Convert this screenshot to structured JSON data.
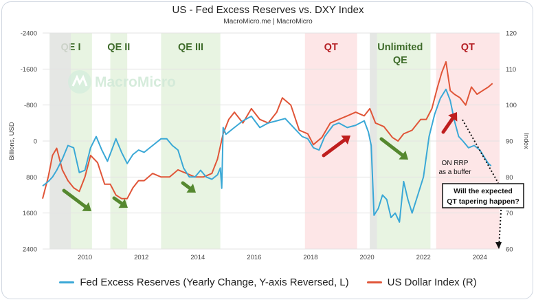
{
  "header": {
    "title": "US - Fed Excess Reserves vs. DXY Index",
    "subtitle": "MacroMicro.me | MacroMicro"
  },
  "watermark": "MacroMicro",
  "colors": {
    "reserves": "#3aa8d6",
    "dxy": "#e05538",
    "qe_band": "#e6f3df",
    "qt_band": "#fde3e4",
    "recession_band": "#e4e4e4",
    "qe_label": "#3e6b2a",
    "qt_label": "#b51f24",
    "green_arrow": "#55882f",
    "red_arrow": "#bf1e1e"
  },
  "annotation": {
    "on_rrp_line1": "ON RRP",
    "on_rrp_line2": "as a buffer",
    "box_line1": "Will the expected",
    "box_line2": "QT tapering happen?"
  },
  "legend": {
    "reserves": "Fed Excess Reserves (Yearly Change, Y-axis Reversed, L)",
    "dxy": "US Dollar Index (R)"
  },
  "chart_data": {
    "type": "line",
    "y_left_label": "Billions, USD",
    "y_right_label": "Index",
    "y_left_reversed": true,
    "y_left_range": [
      -2400,
      2400
    ],
    "y_right_range": [
      60,
      120
    ],
    "x_range": [
      2008.5,
      2024.7
    ],
    "x_ticks": [
      "2010",
      "2012",
      "2014",
      "2016",
      "2018",
      "2020",
      "2022",
      "2024"
    ],
    "y_left_ticks": [
      "-2400",
      "-1600",
      "-800",
      "0",
      "800",
      "1600",
      "2400"
    ],
    "y_right_ticks": [
      "120",
      "110",
      "100",
      "90",
      "80",
      "70",
      "60"
    ],
    "bands": [
      {
        "kind": "qe",
        "start": 2008.75,
        "end": 2010.25,
        "label": "QE I"
      },
      {
        "kind": "qe",
        "start": 2010.9,
        "end": 2011.5,
        "label": "QE II"
      },
      {
        "kind": "qe",
        "start": 2012.7,
        "end": 2014.8,
        "label": "QE III"
      },
      {
        "kind": "qt",
        "start": 2017.8,
        "end": 2019.65,
        "label": "QT"
      },
      {
        "kind": "qe",
        "start": 2020.1,
        "end": 2022.25,
        "label": "Unlimited\nQE"
      },
      {
        "kind": "qt",
        "start": 2022.45,
        "end": 2024.7,
        "label": "QT"
      },
      {
        "kind": "recession",
        "start": 2008.75,
        "end": 2009.5,
        "label": ""
      },
      {
        "kind": "recession",
        "start": 2020.1,
        "end": 2020.35,
        "label": ""
      }
    ],
    "grid": true,
    "grid_style": "horizontal",
    "series": [
      {
        "name": "Fed Excess Reserves (Yearly Change, Y-axis Reversed, L)",
        "axis": "left",
        "x": [
          2008.5,
          2008.7,
          2008.85,
          2009.0,
          2009.2,
          2009.4,
          2009.6,
          2009.8,
          2010.0,
          2010.2,
          2010.4,
          2010.6,
          2010.8,
          2010.95,
          2011.1,
          2011.3,
          2011.5,
          2011.7,
          2011.9,
          2012.1,
          2012.4,
          2012.7,
          2012.9,
          2013.1,
          2013.3,
          2013.5,
          2013.7,
          2013.9,
          2014.1,
          2014.3,
          2014.5,
          2014.7,
          2014.8,
          2014.85,
          2014.9,
          2015.0,
          2015.3,
          2015.6,
          2015.9,
          2016.2,
          2016.5,
          2016.8,
          2017.1,
          2017.4,
          2017.7,
          2017.9,
          2018.1,
          2018.3,
          2018.5,
          2018.8,
          2019.0,
          2019.3,
          2019.6,
          2019.9,
          2020.05,
          2020.15,
          2020.25,
          2020.4,
          2020.55,
          2020.7,
          2020.85,
          2021.0,
          2021.15,
          2021.3,
          2021.45,
          2021.6,
          2021.8,
          2022.0,
          2022.2,
          2022.4,
          2022.6,
          2022.8,
          2022.95,
          2023.1,
          2023.25,
          2023.4,
          2023.6,
          2023.8,
          2024.0,
          2024.15,
          2024.3,
          2024.4
        ],
        "values": [
          1000,
          900,
          800,
          650,
          400,
          100,
          150,
          700,
          650,
          150,
          -100,
          200,
          450,
          200,
          -50,
          250,
          500,
          300,
          200,
          250,
          100,
          -50,
          -50,
          100,
          200,
          600,
          800,
          800,
          650,
          800,
          850,
          750,
          600,
          1050,
          -300,
          -150,
          -300,
          -450,
          -550,
          -300,
          -400,
          -450,
          -500,
          -300,
          -100,
          -50,
          150,
          200,
          -100,
          -350,
          -400,
          -300,
          -350,
          -450,
          -200,
          100,
          1650,
          1500,
          1200,
          1300,
          1700,
          1600,
          1800,
          900,
          1300,
          1600,
          1200,
          800,
          -100,
          -600,
          -950,
          -1150,
          -900,
          -450,
          -100,
          0,
          150,
          100,
          200,
          350,
          500,
          550
        ]
      },
      {
        "name": "US Dollar Index (R)",
        "axis": "right",
        "x": [
          2008.5,
          2008.7,
          2008.85,
          2009.0,
          2009.2,
          2009.4,
          2009.6,
          2009.8,
          2010.0,
          2010.2,
          2010.45,
          2010.7,
          2010.9,
          2011.1,
          2011.3,
          2011.5,
          2011.7,
          2011.9,
          2012.1,
          2012.4,
          2012.7,
          2013.0,
          2013.3,
          2013.6,
          2013.9,
          2014.2,
          2014.5,
          2014.7,
          2014.9,
          2015.1,
          2015.3,
          2015.6,
          2015.9,
          2016.2,
          2016.5,
          2016.8,
          2017.0,
          2017.3,
          2017.6,
          2017.9,
          2018.1,
          2018.4,
          2018.7,
          2019.0,
          2019.3,
          2019.6,
          2019.9,
          2020.1,
          2020.3,
          2020.6,
          2020.9,
          2021.1,
          2021.3,
          2021.6,
          2021.9,
          2022.1,
          2022.3,
          2022.5,
          2022.65,
          2022.8,
          2022.95,
          2023.1,
          2023.3,
          2023.5,
          2023.7,
          2023.9,
          2024.1,
          2024.3,
          2024.45
        ],
        "values": [
          74,
          80,
          86,
          88,
          82,
          79,
          77,
          76,
          80,
          86,
          84,
          78,
          78,
          75,
          74,
          74,
          77,
          79,
          79,
          81,
          80,
          80,
          82,
          81,
          80,
          80,
          81,
          85,
          92,
          96,
          98,
          95,
          99,
          96,
          95,
          98,
          102,
          100,
          93,
          92,
          89,
          91,
          95,
          96,
          97,
          98,
          97,
          99,
          95,
          94,
          91,
          90,
          92,
          93,
          96,
          96,
          99,
          105,
          109,
          112,
          104,
          103,
          102,
          100,
          105,
          103,
          104,
          105,
          106
        ]
      }
    ]
  }
}
